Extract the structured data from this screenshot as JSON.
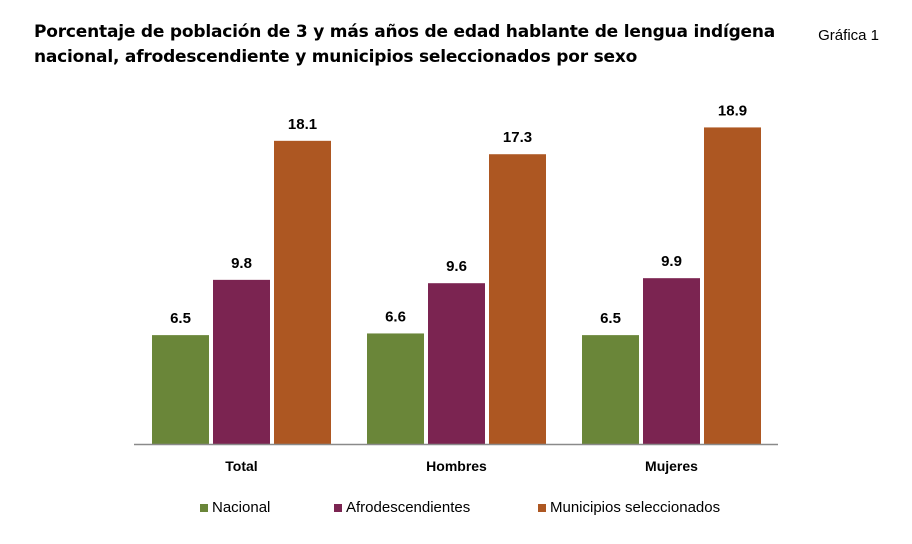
{
  "title": {
    "line1": "Porcentaje de población de 3 y más años de edad hablante de lengua indígena",
    "line2": "nacional, afrodescendiente y municipios seleccionados por sexo"
  },
  "figure_tag": "Gráfica 1",
  "chart_data": {
    "type": "bar",
    "title": "Porcentaje de población de 3 y más años de edad hablante de lengua indígena nacional, afrodescendiente y municipios seleccionados por sexo",
    "categories": [
      "Total",
      "Hombres",
      "Mujeres"
    ],
    "series": [
      {
        "name": "Nacional",
        "values": [
          6.5,
          6.6,
          6.5
        ],
        "color": "#6a8639"
      },
      {
        "name": "Afrodescendientes",
        "values": [
          9.8,
          9.6,
          9.9
        ],
        "color": "#7b2451"
      },
      {
        "name": "Municipios seleccionados",
        "values": [
          18.1,
          17.3,
          18.9
        ],
        "color": "#ad5722"
      }
    ],
    "ylim": [
      0,
      20
    ],
    "grid": false,
    "data_labels": true,
    "legend_position": "bottom"
  }
}
